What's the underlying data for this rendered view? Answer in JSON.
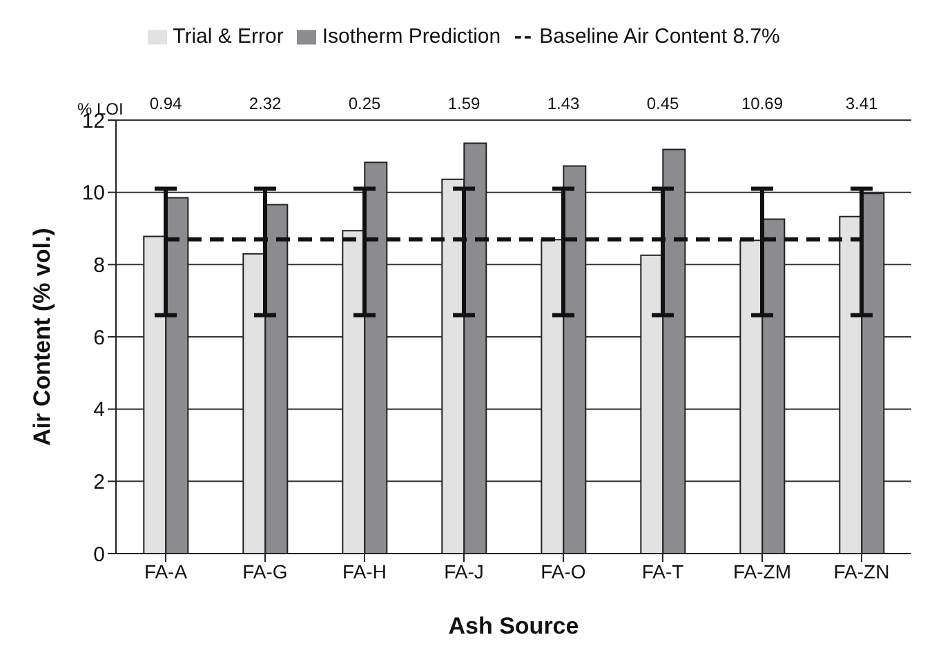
{
  "chart_data": {
    "type": "bar",
    "xlabel": "Ash Source",
    "ylabel": "Air Content (% vol.)",
    "categories": [
      "FA-A",
      "FA-G",
      "FA-H",
      "FA-J",
      "FA-O",
      "FA-T",
      "FA-ZM",
      "FA-ZN"
    ],
    "series": [
      {
        "name": "Trial & Error",
        "color": "#e2e2e2",
        "values": [
          8.78,
          8.3,
          8.94,
          10.36,
          8.69,
          8.26,
          8.67,
          9.33
        ]
      },
      {
        "name": "Isotherm Prediction",
        "color": "#8c8c8e",
        "values": [
          9.85,
          9.66,
          10.83,
          11.36,
          10.73,
          11.19,
          9.26,
          9.97
        ]
      },
      {
        "name": "Baseline Air Content 8.7%",
        "type": "line",
        "color": "#111111",
        "line_style": "dashed",
        "marker": "none",
        "values": [
          8.7,
          8.7,
          8.7,
          8.7,
          8.7,
          8.7,
          8.7,
          8.7
        ],
        "errors": [
          [
            6.6,
            10.1
          ],
          [
            6.6,
            10.1
          ],
          [
            6.6,
            10.1
          ],
          [
            6.6,
            10.1
          ],
          [
            6.6,
            10.1
          ],
          [
            6.6,
            10.1
          ],
          [
            6.6,
            10.1
          ],
          [
            6.6,
            10.1
          ]
        ]
      }
    ],
    "ylim": [
      0,
      12
    ],
    "yticks": [
      0,
      2,
      4,
      6,
      8,
      10,
      12
    ],
    "grid": "y",
    "legend": "top",
    "annotations": [
      "% LOI",
      "0.94",
      "2.32",
      "0.25",
      "1.59",
      "1.43",
      "0.45",
      "10.69",
      "3.41"
    ]
  }
}
